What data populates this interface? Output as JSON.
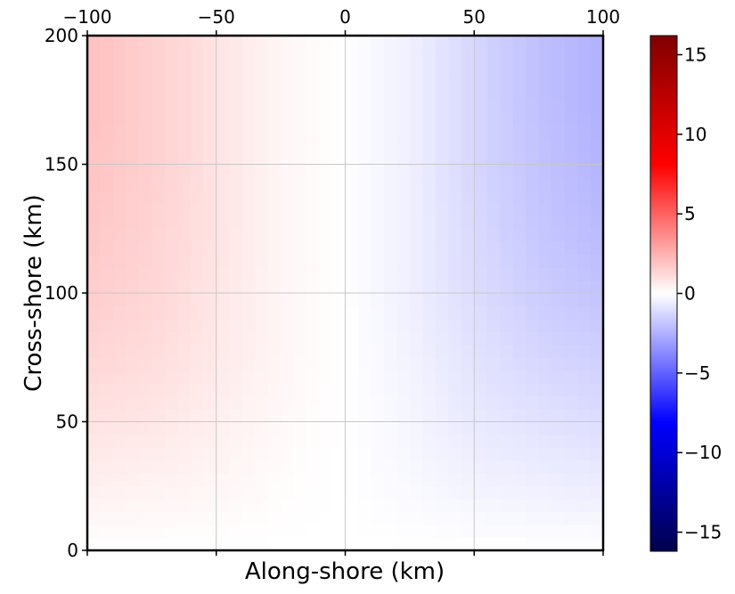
{
  "chart_data": {
    "type": "heatmap",
    "title": "",
    "xlabel": "Along-shore (km)",
    "ylabel": "Cross-shore (km)",
    "xlim": [
      -100,
      100
    ],
    "ylim": [
      0,
      200
    ],
    "x_ticks": [
      -100,
      -50,
      0,
      50,
      100
    ],
    "x_tick_labels": [
      "−100",
      "−50",
      "0",
      "50",
      "100"
    ],
    "x_tick_labels_position": "top",
    "y_ticks": [
      0,
      50,
      100,
      150,
      200
    ],
    "y_tick_labels": [
      "0",
      "50",
      "100",
      "150",
      "200"
    ],
    "grid": true,
    "colormap": "seismic",
    "colorbar": {
      "range": [
        -16.2,
        16.2
      ],
      "ticks": [
        -15,
        -10,
        -5,
        0,
        5,
        10,
        15
      ],
      "tick_labels": [
        "−15",
        "−10",
        "−5",
        "0",
        "5",
        "10",
        "15"
      ],
      "placement": "right"
    },
    "field_description_values": {
      "x_samples": [
        -100,
        -75,
        -50,
        -25,
        0,
        25,
        50,
        75,
        100
      ],
      "y_samples": [
        0,
        25,
        50,
        75,
        100,
        125,
        150,
        175,
        200
      ],
      "values": [
        [
          0.0,
          0.0,
          0.0,
          0.0,
          0.0,
          0.0,
          0.0,
          0.0,
          0.0
        ],
        [
          0.5,
          0.4,
          0.3,
          0.1,
          0.0,
          -0.2,
          -0.4,
          -0.5,
          -0.6
        ],
        [
          0.9,
          0.8,
          0.5,
          0.2,
          0.0,
          -0.3,
          -0.7,
          -0.9,
          -1.1
        ],
        [
          1.3,
          1.1,
          0.7,
          0.3,
          0.0,
          -0.4,
          -0.9,
          -1.3,
          -1.5
        ],
        [
          1.6,
          1.3,
          0.8,
          0.3,
          0.0,
          -0.5,
          -1.1,
          -1.6,
          -1.9
        ],
        [
          1.8,
          1.4,
          0.9,
          0.3,
          0.0,
          -0.5,
          -1.2,
          -1.8,
          -2.2
        ],
        [
          1.9,
          1.5,
          0.9,
          0.3,
          0.0,
          -0.5,
          -1.3,
          -1.9,
          -2.4
        ],
        [
          2.0,
          1.5,
          0.9,
          0.3,
          0.0,
          -0.5,
          -1.3,
          -2.0,
          -2.5
        ],
        [
          2.0,
          1.5,
          0.9,
          0.3,
          0.0,
          -0.5,
          -1.3,
          -2.0,
          -2.5
        ]
      ]
    }
  }
}
